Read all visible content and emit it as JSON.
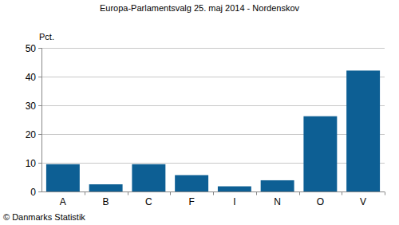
{
  "chart_data": {
    "type": "bar",
    "title": "Europa-Parlamentsvalg 25. maj 2014 - Nordenskov",
    "ylabel": "Pct.",
    "annotations": [
      "© Danmarks Statistik"
    ],
    "categories": [
      "A",
      "B",
      "C",
      "F",
      "I",
      "N",
      "O",
      "V"
    ],
    "values": [
      9.5,
      2.5,
      9.5,
      5.7,
      1.8,
      3.9,
      26.2,
      42.1
    ],
    "color": "#0d5f94",
    "ylim": [
      0,
      50
    ],
    "yticks": [
      0,
      10,
      20,
      30,
      40,
      50
    ],
    "grid": true
  }
}
